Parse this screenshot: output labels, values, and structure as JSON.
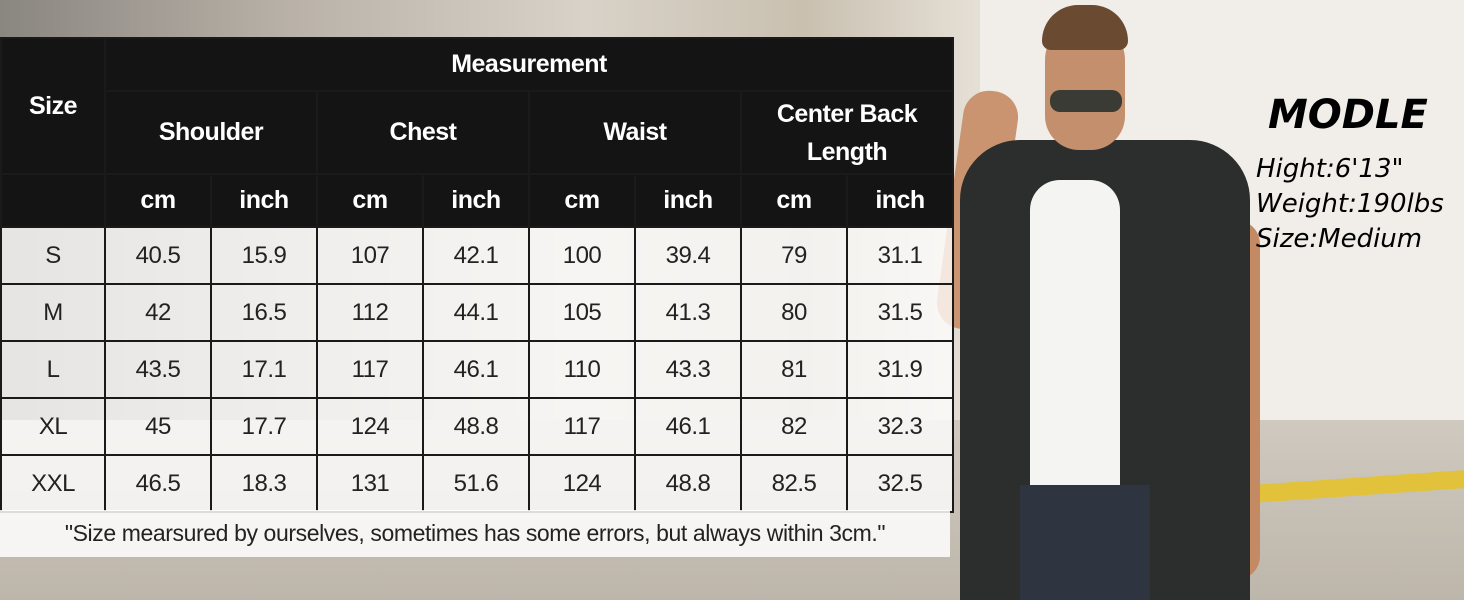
{
  "table": {
    "group_header": "Measurement",
    "size_header": "Size",
    "columns": [
      "Shoulder",
      "Chest",
      "Waist",
      "Center Back Length"
    ],
    "units": [
      "cm",
      "inch",
      "cm",
      "inch",
      "cm",
      "inch",
      "cm",
      "inch"
    ],
    "rows": [
      {
        "size": "S",
        "values": [
          "40.5",
          "15.9",
          "107",
          "42.1",
          "100",
          "39.4",
          "79",
          "31.1"
        ]
      },
      {
        "size": "M",
        "values": [
          "42",
          "16.5",
          "112",
          "44.1",
          "105",
          "41.3",
          "80",
          "31.5"
        ]
      },
      {
        "size": "L",
        "values": [
          "43.5",
          "17.1",
          "117",
          "46.1",
          "110",
          "43.3",
          "81",
          "31.9"
        ]
      },
      {
        "size": "XL",
        "values": [
          "45",
          "17.7",
          "124",
          "48.8",
          "117",
          "46.1",
          "82",
          "32.3"
        ]
      },
      {
        "size": "XXL",
        "values": [
          "46.5",
          "18.3",
          "131",
          "51.6",
          "124",
          "48.8",
          "82.5",
          "32.5"
        ]
      }
    ],
    "footnote": "\"Size mearsured by ourselves, sometimes has some errors, but always within 3cm.\""
  },
  "model": {
    "title": "MODLE",
    "height": "Hight:6'13\"",
    "weight": "Weight:190lbs",
    "size": "Size:Medium"
  }
}
